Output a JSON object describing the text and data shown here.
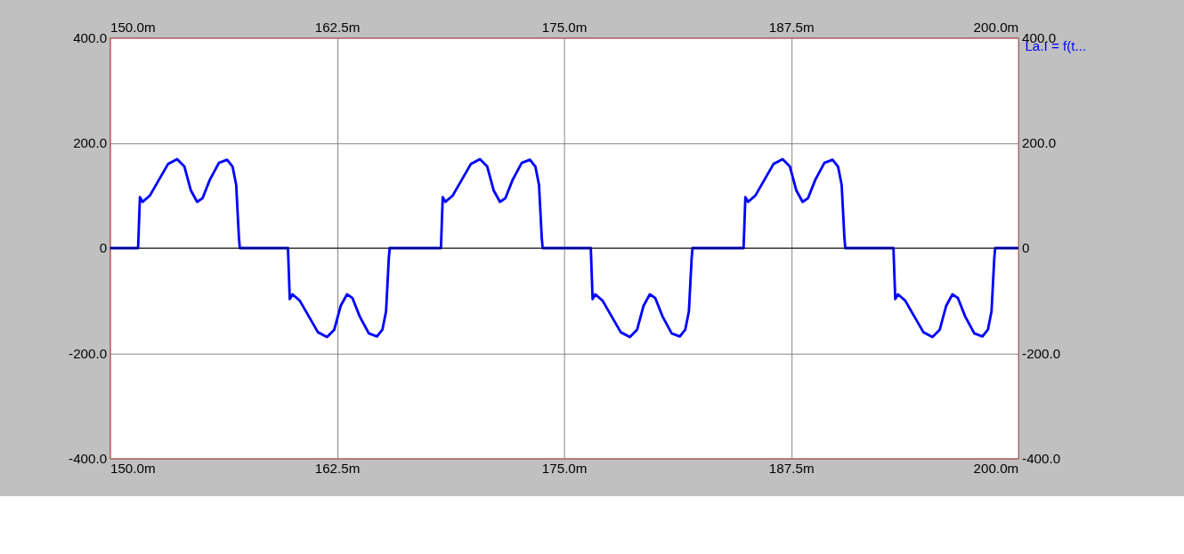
{
  "chart_data": {
    "type": "line",
    "xlim": [
      150,
      200
    ],
    "ylim": [
      -400,
      400
    ],
    "xticks": [
      {
        "value": 150,
        "label": "150.0m"
      },
      {
        "value": 162.5,
        "label": "162.5m"
      },
      {
        "value": 175,
        "label": "175.0m"
      },
      {
        "value": 187.5,
        "label": "187.5m"
      },
      {
        "value": 200,
        "label": "200.0m"
      }
    ],
    "x2lim": [
      150,
      200
    ],
    "x2ticks": [
      {
        "value": 150,
        "label": "150.0m"
      },
      {
        "value": 162.5,
        "label": "162.5m"
      },
      {
        "value": 175,
        "label": "175.0m"
      },
      {
        "value": 187.5,
        "label": "187.5m"
      },
      {
        "value": 200,
        "label": "200.0m"
      }
    ],
    "yticks": [
      {
        "value": -400,
        "label": "-400.0"
      },
      {
        "value": -200,
        "label": "-200.0"
      },
      0,
      {
        "value": 200,
        "label": "200.0"
      },
      {
        "value": 400,
        "label": "400.0"
      }
    ],
    "y2lim": [
      -400,
      400
    ],
    "y2ticks": [
      {
        "value": -400,
        "label": "-400.0"
      },
      {
        "value": -200,
        "label": "-200.0"
      },
      0,
      {
        "value": 200,
        "label": "200.0"
      },
      {
        "value": 400,
        "label": "400.0"
      }
    ],
    "grid": true,
    "legend": "top right",
    "ref_lines": [
      {
        "axis": "y",
        "value": 0,
        "color": "#000000"
      }
    ],
    "series": [
      {
        "name": "La.I = f(t...",
        "color": "#0000ff",
        "x": [
          150,
          151.55,
          151.65,
          151.8,
          152.2,
          152.7,
          153.2,
          153.7,
          154.1,
          154.45,
          154.8,
          155.1,
          155.5,
          156.0,
          156.45,
          156.75,
          156.95,
          157.1,
          157.15,
          159.8,
          159.9,
          160.05,
          160.45,
          160.95,
          161.45,
          161.95,
          162.35,
          162.7,
          163.05,
          163.35,
          163.75,
          164.25,
          164.7,
          165.0,
          165.2,
          165.35,
          165.4,
          168.22,
          168.32,
          168.47,
          168.87,
          169.37,
          169.87,
          170.37,
          170.77,
          171.12,
          171.47,
          171.77,
          172.17,
          172.67,
          173.12,
          173.42,
          173.62,
          173.77,
          173.82,
          176.47,
          176.57,
          176.72,
          177.12,
          177.62,
          178.12,
          178.62,
          179.02,
          179.37,
          179.72,
          180.02,
          180.42,
          180.92,
          181.37,
          181.67,
          181.87,
          182.02,
          182.07,
          184.88,
          184.98,
          185.13,
          185.53,
          186.03,
          186.53,
          187.03,
          187.43,
          187.78,
          188.13,
          188.43,
          188.83,
          189.33,
          189.78,
          190.08,
          190.28,
          190.43,
          190.48,
          193.13,
          193.23,
          193.38,
          193.78,
          194.28,
          194.78,
          195.28,
          195.68,
          196.03,
          196.38,
          196.68,
          197.08,
          197.58,
          198.03,
          198.33,
          198.53,
          198.68,
          198.73,
          200
        ],
        "values": [
          0,
          0,
          97,
          88,
          100,
          130,
          160,
          169,
          155,
          110,
          88,
          95,
          130,
          162,
          168,
          155,
          120,
          20,
          0,
          0,
          -97,
          -88,
          -100,
          -130,
          -160,
          -169,
          -155,
          -110,
          -88,
          -95,
          -130,
          -162,
          -168,
          -155,
          -120,
          -20,
          0,
          0,
          97,
          88,
          100,
          130,
          160,
          169,
          155,
          110,
          88,
          95,
          130,
          162,
          168,
          155,
          120,
          20,
          0,
          0,
          -97,
          -88,
          -100,
          -130,
          -160,
          -169,
          -155,
          -110,
          -88,
          -95,
          -130,
          -162,
          -168,
          -155,
          -120,
          -20,
          0,
          0,
          97,
          88,
          100,
          130,
          160,
          169,
          155,
          110,
          88,
          95,
          130,
          162,
          168,
          155,
          120,
          20,
          0,
          0,
          -97,
          -88,
          -100,
          -130,
          -160,
          -169,
          -155,
          -110,
          -88,
          -95,
          -130,
          -162,
          -168,
          -155,
          -120,
          -20,
          0,
          0
        ]
      }
    ]
  }
}
